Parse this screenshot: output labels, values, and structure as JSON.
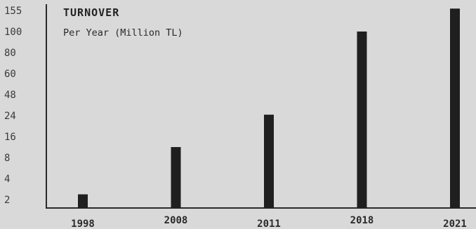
{
  "chart_data": {
    "type": "bar",
    "title": "TURNOVER",
    "subtitle": "Per Year (Million TL)",
    "categories": [
      "1998",
      "2008",
      "2011",
      "2018",
      "2021"
    ],
    "values": [
      2.5,
      12,
      25,
      100,
      160
    ],
    "ytick_labels": [
      "2",
      "4",
      "8",
      "16",
      "24",
      "48",
      "60",
      "80",
      "100",
      "155"
    ],
    "y_scale": "categorical-ordinal",
    "bar_color": "#1f1f1f",
    "axis_color": "#2a2a2a",
    "background": "#d9d9d9",
    "grid": false
  }
}
